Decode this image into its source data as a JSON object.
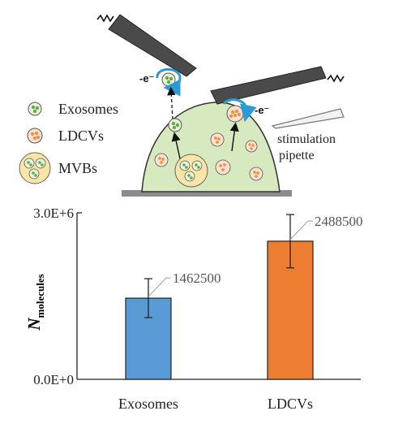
{
  "legend": {
    "exosomes_label": "Exosomes",
    "ldcvs_label": "LDCVs",
    "mvbs_label": "MVBs"
  },
  "diagram": {
    "electron_label_1": "-e⁻",
    "electron_label_2": "-e⁻",
    "pipette_label_line1": "stimulation",
    "pipette_label_line2": "pipette"
  },
  "colors": {
    "cell_fill": "#d7e9bf",
    "exosome_fill": "#64a84a",
    "ldcv_fill": "#f08a3c",
    "mvb_fill": "#f9e6a6",
    "electrode": "#4a4a4a",
    "arrow_blue": "#2a9ad8",
    "bar_exosomes": "#5b9bd5",
    "bar_ldcvs": "#ed7d31"
  },
  "chart_data": {
    "type": "bar",
    "categories": [
      "Exosomes",
      "LDCVs"
    ],
    "values": [
      1462500,
      2488500
    ],
    "errors": [
      350000,
      480000
    ],
    "data_labels": [
      "1462500",
      "2488500"
    ],
    "ylabel_main": "N",
    "ylabel_sub": "molecules",
    "ylim": [
      0,
      3000000
    ],
    "ytick_labels": [
      "0.0E+0",
      "3.0E+6"
    ],
    "colors": [
      "#5b9bd5",
      "#ed7d31"
    ],
    "grid": false
  }
}
